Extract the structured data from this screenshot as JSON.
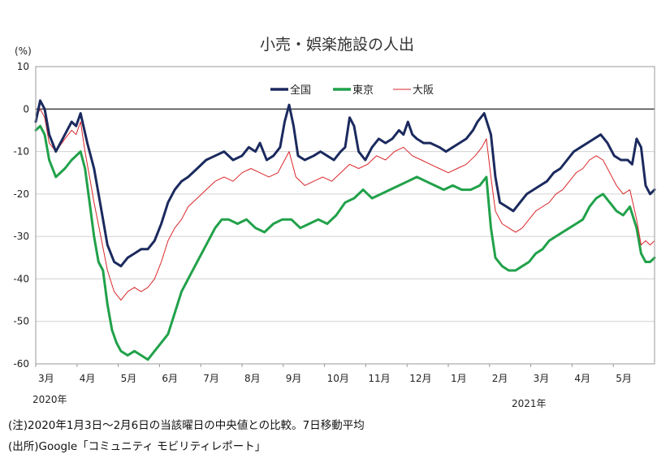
{
  "chart_data": {
    "type": "line",
    "title": "小売・娯楽施設の人出",
    "ylabel": "(%)",
    "ylim": [
      -60,
      10
    ],
    "yticks": [
      10,
      0,
      -10,
      -20,
      -30,
      -40,
      -50,
      -60
    ],
    "xlabel": "",
    "x_months": [
      "3月",
      "4月",
      "5月",
      "6月",
      "7月",
      "8月",
      "9月",
      "10月",
      "11月",
      "12月",
      "1月",
      "2月",
      "3月",
      "4月",
      "5月"
    ],
    "x_year_labels": [
      "2020年",
      "2021年"
    ],
    "grid": "horizontal",
    "legend": "top-center",
    "series": [
      {
        "name": "全国",
        "color": "#1b2a5e",
        "points": [
          [
            0,
            -3
          ],
          [
            2,
            2
          ],
          [
            4,
            0
          ],
          [
            6,
            -6
          ],
          [
            9,
            -10
          ],
          [
            13,
            -6
          ],
          [
            16,
            -3
          ],
          [
            18,
            -4
          ],
          [
            20,
            -1
          ],
          [
            23,
            -8
          ],
          [
            26,
            -14
          ],
          [
            29,
            -23
          ],
          [
            32,
            -32
          ],
          [
            35,
            -36
          ],
          [
            38,
            -37
          ],
          [
            41,
            -35
          ],
          [
            44,
            -34
          ],
          [
            47,
            -33
          ],
          [
            50,
            -33
          ],
          [
            53,
            -31
          ],
          [
            56,
            -27
          ],
          [
            59,
            -22
          ],
          [
            62,
            -19
          ],
          [
            65,
            -17
          ],
          [
            68,
            -16
          ],
          [
            72,
            -14
          ],
          [
            76,
            -12
          ],
          [
            80,
            -11
          ],
          [
            84,
            -10
          ],
          [
            88,
            -12
          ],
          [
            92,
            -11
          ],
          [
            95,
            -9
          ],
          [
            98,
            -10
          ],
          [
            100,
            -8
          ],
          [
            103,
            -12
          ],
          [
            106,
            -11
          ],
          [
            109,
            -9
          ],
          [
            111,
            -3
          ],
          [
            113,
            1
          ],
          [
            115,
            -4
          ],
          [
            117,
            -11
          ],
          [
            120,
            -12
          ],
          [
            124,
            -11
          ],
          [
            127,
            -10
          ],
          [
            130,
            -11
          ],
          [
            133,
            -12
          ],
          [
            136,
            -10
          ],
          [
            138,
            -9
          ],
          [
            140,
            -2
          ],
          [
            142,
            -4
          ],
          [
            144,
            -10
          ],
          [
            147,
            -12
          ],
          [
            150,
            -9
          ],
          [
            153,
            -7
          ],
          [
            156,
            -8
          ],
          [
            159,
            -7
          ],
          [
            162,
            -5
          ],
          [
            164,
            -6
          ],
          [
            166,
            -3
          ],
          [
            168,
            -6
          ],
          [
            170,
            -7
          ],
          [
            173,
            -8
          ],
          [
            176,
            -8
          ],
          [
            180,
            -9
          ],
          [
            183,
            -10
          ],
          [
            186,
            -9
          ],
          [
            189,
            -8
          ],
          [
            192,
            -7
          ],
          [
            195,
            -5
          ],
          [
            197,
            -3
          ],
          [
            200,
            -1
          ],
          [
            203,
            -6
          ],
          [
            205,
            -16
          ],
          [
            207,
            -22
          ],
          [
            210,
            -23
          ],
          [
            213,
            -24
          ],
          [
            216,
            -22
          ],
          [
            219,
            -20
          ],
          [
            222,
            -19
          ],
          [
            225,
            -18
          ],
          [
            228,
            -17
          ],
          [
            231,
            -15
          ],
          [
            234,
            -14
          ],
          [
            237,
            -12
          ],
          [
            240,
            -10
          ],
          [
            243,
            -9
          ],
          [
            246,
            -8
          ],
          [
            249,
            -7
          ],
          [
            252,
            -6
          ],
          [
            255,
            -8
          ],
          [
            258,
            -11
          ],
          [
            261,
            -12
          ],
          [
            264,
            -12
          ],
          [
            266,
            -13
          ],
          [
            268,
            -7
          ],
          [
            270,
            -9
          ],
          [
            272,
            -18
          ],
          [
            274,
            -20
          ],
          [
            276,
            -19
          ]
        ]
      },
      {
        "name": "東京",
        "color": "#21a14a",
        "points": [
          [
            0,
            -5
          ],
          [
            2,
            -4
          ],
          [
            4,
            -6
          ],
          [
            6,
            -12
          ],
          [
            9,
            -16
          ],
          [
            13,
            -14
          ],
          [
            16,
            -12
          ],
          [
            18,
            -11
          ],
          [
            20,
            -10
          ],
          [
            22,
            -14
          ],
          [
            24,
            -22
          ],
          [
            26,
            -30
          ],
          [
            28,
            -36
          ],
          [
            30,
            -38
          ],
          [
            32,
            -46
          ],
          [
            34,
            -52
          ],
          [
            36,
            -55
          ],
          [
            38,
            -57
          ],
          [
            41,
            -58
          ],
          [
            44,
            -57
          ],
          [
            47,
            -58
          ],
          [
            50,
            -59
          ],
          [
            53,
            -57
          ],
          [
            56,
            -55
          ],
          [
            59,
            -53
          ],
          [
            62,
            -48
          ],
          [
            65,
            -43
          ],
          [
            68,
            -40
          ],
          [
            71,
            -37
          ],
          [
            74,
            -34
          ],
          [
            77,
            -31
          ],
          [
            80,
            -28
          ],
          [
            83,
            -26
          ],
          [
            86,
            -26
          ],
          [
            90,
            -27
          ],
          [
            94,
            -26
          ],
          [
            98,
            -28
          ],
          [
            102,
            -29
          ],
          [
            106,
            -27
          ],
          [
            110,
            -26
          ],
          [
            114,
            -26
          ],
          [
            118,
            -28
          ],
          [
            122,
            -27
          ],
          [
            126,
            -26
          ],
          [
            130,
            -27
          ],
          [
            134,
            -25
          ],
          [
            138,
            -22
          ],
          [
            142,
            -21
          ],
          [
            146,
            -19
          ],
          [
            150,
            -21
          ],
          [
            154,
            -20
          ],
          [
            158,
            -19
          ],
          [
            162,
            -18
          ],
          [
            166,
            -17
          ],
          [
            170,
            -16
          ],
          [
            174,
            -17
          ],
          [
            178,
            -18
          ],
          [
            182,
            -19
          ],
          [
            186,
            -18
          ],
          [
            190,
            -19
          ],
          [
            194,
            -19
          ],
          [
            198,
            -18
          ],
          [
            201,
            -16
          ],
          [
            203,
            -28
          ],
          [
            205,
            -35
          ],
          [
            208,
            -37
          ],
          [
            211,
            -38
          ],
          [
            214,
            -38
          ],
          [
            217,
            -37
          ],
          [
            220,
            -36
          ],
          [
            223,
            -34
          ],
          [
            226,
            -33
          ],
          [
            229,
            -31
          ],
          [
            232,
            -30
          ],
          [
            235,
            -29
          ],
          [
            238,
            -28
          ],
          [
            241,
            -27
          ],
          [
            244,
            -26
          ],
          [
            247,
            -23
          ],
          [
            250,
            -21
          ],
          [
            253,
            -20
          ],
          [
            256,
            -22
          ],
          [
            259,
            -24
          ],
          [
            262,
            -25
          ],
          [
            265,
            -23
          ],
          [
            268,
            -28
          ],
          [
            270,
            -34
          ],
          [
            272,
            -36
          ],
          [
            274,
            -36
          ],
          [
            276,
            -35
          ]
        ]
      },
      {
        "name": "大阪",
        "color": "#d9262a",
        "points": [
          [
            0,
            -2
          ],
          [
            2,
            0
          ],
          [
            4,
            -2
          ],
          [
            6,
            -8
          ],
          [
            9,
            -10
          ],
          [
            13,
            -7
          ],
          [
            16,
            -5
          ],
          [
            18,
            -6
          ],
          [
            20,
            -3
          ],
          [
            22,
            -10
          ],
          [
            24,
            -16
          ],
          [
            26,
            -22
          ],
          [
            29,
            -30
          ],
          [
            32,
            -38
          ],
          [
            35,
            -43
          ],
          [
            38,
            -45
          ],
          [
            41,
            -43
          ],
          [
            44,
            -42
          ],
          [
            47,
            -43
          ],
          [
            50,
            -42
          ],
          [
            53,
            -40
          ],
          [
            56,
            -36
          ],
          [
            59,
            -31
          ],
          [
            62,
            -28
          ],
          [
            65,
            -26
          ],
          [
            68,
            -23
          ],
          [
            72,
            -21
          ],
          [
            76,
            -19
          ],
          [
            80,
            -17
          ],
          [
            84,
            -16
          ],
          [
            88,
            -17
          ],
          [
            92,
            -15
          ],
          [
            96,
            -14
          ],
          [
            100,
            -15
          ],
          [
            104,
            -16
          ],
          [
            108,
            -15
          ],
          [
            111,
            -12
          ],
          [
            113,
            -10
          ],
          [
            116,
            -16
          ],
          [
            120,
            -18
          ],
          [
            124,
            -17
          ],
          [
            128,
            -16
          ],
          [
            132,
            -17
          ],
          [
            136,
            -15
          ],
          [
            140,
            -13
          ],
          [
            144,
            -14
          ],
          [
            148,
            -13
          ],
          [
            152,
            -11
          ],
          [
            156,
            -12
          ],
          [
            160,
            -10
          ],
          [
            164,
            -9
          ],
          [
            168,
            -11
          ],
          [
            172,
            -12
          ],
          [
            176,
            -13
          ],
          [
            180,
            -14
          ],
          [
            184,
            -15
          ],
          [
            188,
            -14
          ],
          [
            192,
            -13
          ],
          [
            196,
            -11
          ],
          [
            199,
            -9
          ],
          [
            201,
            -7
          ],
          [
            203,
            -16
          ],
          [
            205,
            -24
          ],
          [
            208,
            -27
          ],
          [
            211,
            -28
          ],
          [
            214,
            -29
          ],
          [
            217,
            -28
          ],
          [
            220,
            -26
          ],
          [
            223,
            -24
          ],
          [
            226,
            -23
          ],
          [
            229,
            -22
          ],
          [
            232,
            -20
          ],
          [
            235,
            -19
          ],
          [
            238,
            -17
          ],
          [
            241,
            -15
          ],
          [
            244,
            -14
          ],
          [
            247,
            -12
          ],
          [
            250,
            -11
          ],
          [
            253,
            -12
          ],
          [
            256,
            -15
          ],
          [
            259,
            -18
          ],
          [
            262,
            -20
          ],
          [
            265,
            -19
          ],
          [
            268,
            -26
          ],
          [
            270,
            -32
          ],
          [
            272,
            -31
          ],
          [
            274,
            -32
          ],
          [
            276,
            -31
          ]
        ]
      }
    ]
  },
  "notes": {
    "note1": "(注)2020年1月3日～2月6日の当該曜日の中央値との比較。7日移動平均",
    "note2": "(出所)Google「コミュニティ モビリティレポート」"
  }
}
